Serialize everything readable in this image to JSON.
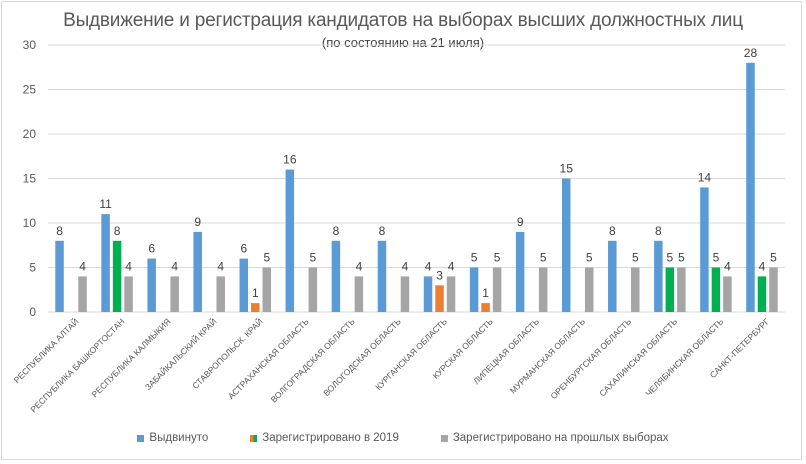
{
  "chart_data": {
    "type": "bar",
    "title": "Выдвижение и регистрация кандидатов на выборах высших должностных  лиц",
    "subtitle": "(по состоянию на 21  июля)",
    "xlabel": "",
    "ylabel": "",
    "ylim": [
      0,
      30
    ],
    "yticks": [
      0,
      5,
      10,
      15,
      20,
      25,
      30
    ],
    "grid": true,
    "legend_position": "bottom",
    "categories": [
      "РЕСПУБЛИКА АЛТАЙ",
      "РЕСПУБЛИКА БАШКОРТОСТАН",
      "РЕСПУБЛИКА КАЛМЫКИЯ",
      "ЗАБАЙКАЛЬСКИЙ КРАЙ",
      "СТАВРОПОЛЬСК. КРАЙ",
      "АСТРАХАНСКАЯ ОБЛАСТЬ",
      "ВОЛГОГРАДСКАЯ ОБЛАСТЬ",
      "ВОЛОГОДСКАЯ ОБЛАСТЬ",
      "КУРГАНСКАЯ ОБЛАСТЬ",
      "КУРСКАЯ ОБЛАСТЬ",
      "ЛИПЕЦКАЯ ОБЛАСТЬ",
      "МУРМАНСКАЯ ОБЛАСТЬ",
      "ОРЕНБУРГСКАЯ ОБЛАСТЬ",
      "САХАЛИНСКАЯ ОБЛАСТЬ",
      "ЧЕЛЯБИНСКАЯ ОБЛАСТЬ",
      "САНКТ-ПЕТЕРБУРГ"
    ],
    "series": [
      {
        "name": "Выдвинуто",
        "color": "#5B9BD5",
        "values": [
          8,
          11,
          6,
          9,
          6,
          16,
          8,
          8,
          4,
          5,
          9,
          15,
          8,
          8,
          14,
          28
        ]
      },
      {
        "name": "Зарегистрировано в 2019",
        "color": "#ED7D31",
        "point_colors": [
          "#ED7D31",
          "#00B050",
          "#ED7D31",
          "#ED7D31",
          "#ED7D31",
          "#ED7D31",
          "#ED7D31",
          "#ED7D31",
          "#ED7D31",
          "#ED7D31",
          "#ED7D31",
          "#ED7D31",
          "#ED7D31",
          "#00B050",
          "#00B050",
          "#00B050"
        ],
        "values": [
          null,
          8,
          null,
          null,
          1,
          null,
          null,
          null,
          3,
          1,
          null,
          null,
          null,
          5,
          5,
          4
        ]
      },
      {
        "name": "Зарегистрировано на прошлых выборах",
        "color": "#A5A5A5",
        "values": [
          4,
          4,
          4,
          4,
          5,
          5,
          4,
          4,
          4,
          5,
          5,
          5,
          5,
          5,
          4,
          5
        ]
      }
    ]
  },
  "colors": {
    "gridline": "#d9d9d9",
    "axis_text": "#595959",
    "label_text": "#404040"
  }
}
